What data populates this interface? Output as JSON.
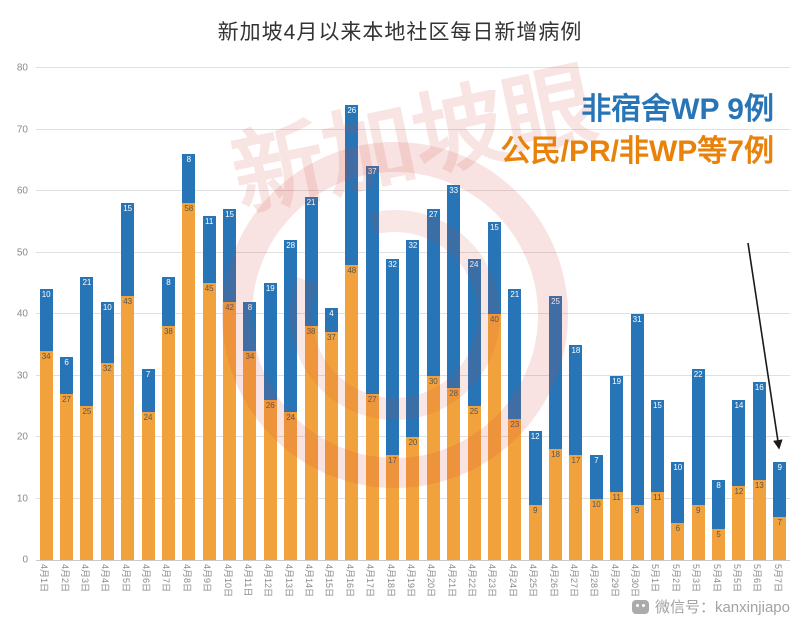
{
  "chart_data": {
    "type": "bar",
    "stacked": true,
    "title": "新加坡4月以来本地社区每日新增病例",
    "categories": [
      "4月1日",
      "4月2日",
      "4月3日",
      "4月4日",
      "4月5日",
      "4月6日",
      "4月7日",
      "4月8日",
      "4月9日",
      "4月10日",
      "4月11日",
      "4月12日",
      "4月13日",
      "4月14日",
      "4月15日",
      "4月16日",
      "4月17日",
      "4月18日",
      "4月19日",
      "4月20日",
      "4月21日",
      "4月22日",
      "4月23日",
      "4月24日",
      "4月25日",
      "4月26日",
      "4月27日",
      "4月28日",
      "4月29日",
      "4月30日",
      "5月1日",
      "5月2日",
      "5月3日",
      "5月4日",
      "5月5日",
      "5月6日",
      "5月7日"
    ],
    "series": [
      {
        "name": "公民/PR/非WP",
        "color": "#F2A23C",
        "values": [
          34,
          27,
          25,
          32,
          43,
          24,
          38,
          58,
          45,
          42,
          34,
          26,
          24,
          38,
          37,
          48,
          27,
          17,
          20,
          30,
          28,
          25,
          40,
          23,
          9,
          18,
          17,
          10,
          11,
          9,
          11,
          6,
          9,
          5,
          12,
          13,
          7
        ]
      },
      {
        "name": "非宿舍WP",
        "color": "#2775B6",
        "values": [
          10,
          6,
          21,
          10,
          15,
          7,
          8,
          8,
          11,
          15,
          8,
          19,
          28,
          21,
          4,
          26,
          37,
          32,
          32,
          27,
          33,
          24,
          15,
          21,
          12,
          25,
          18,
          7,
          19,
          31,
          15,
          10,
          22,
          8,
          14,
          16,
          9
        ]
      }
    ],
    "ylim": [
      0,
      80
    ],
    "yticks": [
      0,
      10,
      20,
      30,
      40,
      50,
      60,
      70,
      80
    ],
    "grid": true,
    "legend": "none",
    "annotations": [
      {
        "text": "非宿舍WP 9例",
        "color": "#2775B6"
      },
      {
        "text": "公民/PR/非WP等7例",
        "color": "#E8820A"
      }
    ]
  },
  "watermark": {
    "logo_text": "新加坡眼",
    "credit": "微信号：kanxinjiapo"
  },
  "colors": {
    "bar_orange": "#F2A23C",
    "bar_blue": "#2775B6",
    "annotation_blue": "#2775B6",
    "annotation_orange": "#E8820A",
    "watermark_red": "#CD463C"
  }
}
